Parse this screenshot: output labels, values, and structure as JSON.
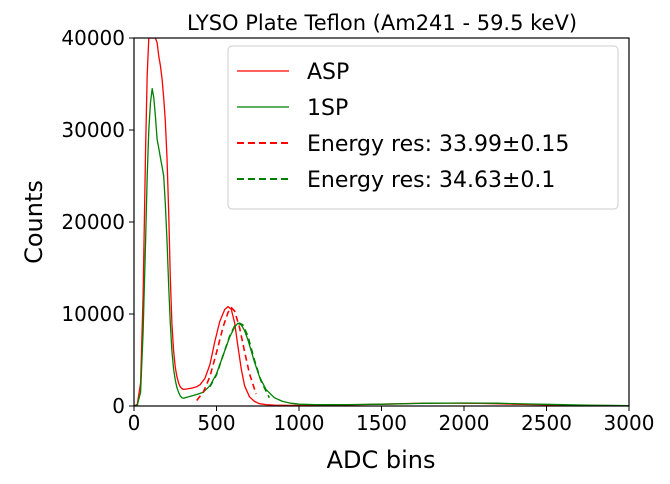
{
  "chart_data": {
    "type": "line",
    "title": "LYSO Plate Teflon (Am241 - 59.5 keV)",
    "xlabel": "ADC bins",
    "ylabel": "Counts",
    "xlim": [
      0,
      3000
    ],
    "ylim": [
      0,
      40000
    ],
    "xticks": [
      0,
      500,
      1000,
      1500,
      2000,
      2500,
      3000
    ],
    "yticks": [
      0,
      10000,
      20000,
      30000,
      40000
    ],
    "grid": false,
    "legend_position": "top-right",
    "series": [
      {
        "name": "ASP",
        "color": "#ff0000",
        "style": "solid",
        "x": [
          0,
          20,
          40,
          55,
          70,
          80,
          90,
          100,
          110,
          120,
          130,
          140,
          150,
          160,
          170,
          180,
          190,
          200,
          210,
          220,
          230,
          240,
          250,
          260,
          270,
          280,
          290,
          300,
          320,
          350,
          380,
          400,
          430,
          460,
          490,
          520,
          550,
          570,
          590,
          610,
          630,
          650,
          670,
          700,
          730,
          760,
          800,
          850,
          900,
          950,
          1000,
          1100,
          1200,
          1300,
          1400,
          1500,
          1600,
          1700,
          1800,
          1900,
          2000,
          2100,
          2200,
          2300,
          2400,
          2500,
          2600,
          2700,
          2800,
          2900,
          3000
        ],
        "values": [
          0,
          200,
          2500,
          12000,
          28000,
          36000,
          40000,
          40000,
          40000,
          40000,
          40000,
          39500,
          38000,
          37000,
          35500,
          33500,
          31000,
          27000,
          21000,
          14000,
          9000,
          6000,
          4200,
          3200,
          2500,
          2100,
          1900,
          1800,
          1850,
          1950,
          2100,
          2300,
          3000,
          4500,
          7000,
          9200,
          10500,
          10800,
          10500,
          9000,
          6500,
          4000,
          2200,
          1000,
          500,
          250,
          150,
          100,
          80,
          70,
          70,
          80,
          100,
          130,
          160,
          200,
          240,
          280,
          300,
          310,
          300,
          280,
          250,
          200,
          160,
          120,
          90,
          70,
          50,
          40,
          30
        ]
      },
      {
        "name": "1SP",
        "color": "#008000",
        "style": "solid",
        "x": [
          0,
          20,
          40,
          55,
          70,
          80,
          90,
          100,
          110,
          120,
          130,
          140,
          150,
          160,
          170,
          180,
          190,
          200,
          210,
          220,
          230,
          240,
          250,
          260,
          270,
          280,
          290,
          300,
          320,
          350,
          380,
          420,
          460,
          500,
          540,
          580,
          610,
          630,
          650,
          670,
          690,
          710,
          730,
          760,
          800,
          850,
          900,
          950,
          1000,
          1100,
          1200,
          1300,
          1400,
          1500,
          1600,
          1700,
          1800,
          1900,
          2000,
          2100,
          2200,
          2300,
          2400,
          2500,
          2600,
          2700,
          2800,
          2900,
          3000
        ],
        "values": [
          0,
          100,
          1500,
          8000,
          18000,
          25000,
          30000,
          33000,
          34500,
          33500,
          31500,
          29000,
          28000,
          27000,
          26000,
          25000,
          22000,
          18000,
          13000,
          9000,
          6000,
          4000,
          2800,
          2000,
          1500,
          1100,
          900,
          850,
          950,
          1100,
          1250,
          1500,
          2200,
          3500,
          5500,
          7500,
          8600,
          9000,
          8800,
          8200,
          7200,
          6000,
          4800,
          3200,
          1800,
          900,
          500,
          300,
          200,
          150,
          140,
          150,
          170,
          200,
          230,
          270,
          300,
          320,
          330,
          320,
          300,
          260,
          220,
          180,
          140,
          110,
          80,
          60,
          40
        ]
      },
      {
        "name": "Energy res: 33.99±0.15",
        "color": "#ff0000",
        "style": "dashed",
        "x": [
          380,
          420,
          460,
          500,
          540,
          570,
          590,
          610,
          640,
          670,
          700,
          740
        ],
        "values": [
          600,
          1500,
          3200,
          5800,
          8600,
          10200,
          10700,
          10300,
          8500,
          5900,
          3500,
          1300
        ]
      },
      {
        "name": "Energy res: 34.63±0.1",
        "color": "#008000",
        "style": "dashed",
        "x": [
          460,
          500,
          540,
          580,
          610,
          640,
          660,
          690,
          730,
          770,
          820
        ],
        "values": [
          2100,
          3400,
          5500,
          7600,
          8700,
          9000,
          8800,
          7600,
          5000,
          2700,
          900
        ]
      }
    ]
  }
}
